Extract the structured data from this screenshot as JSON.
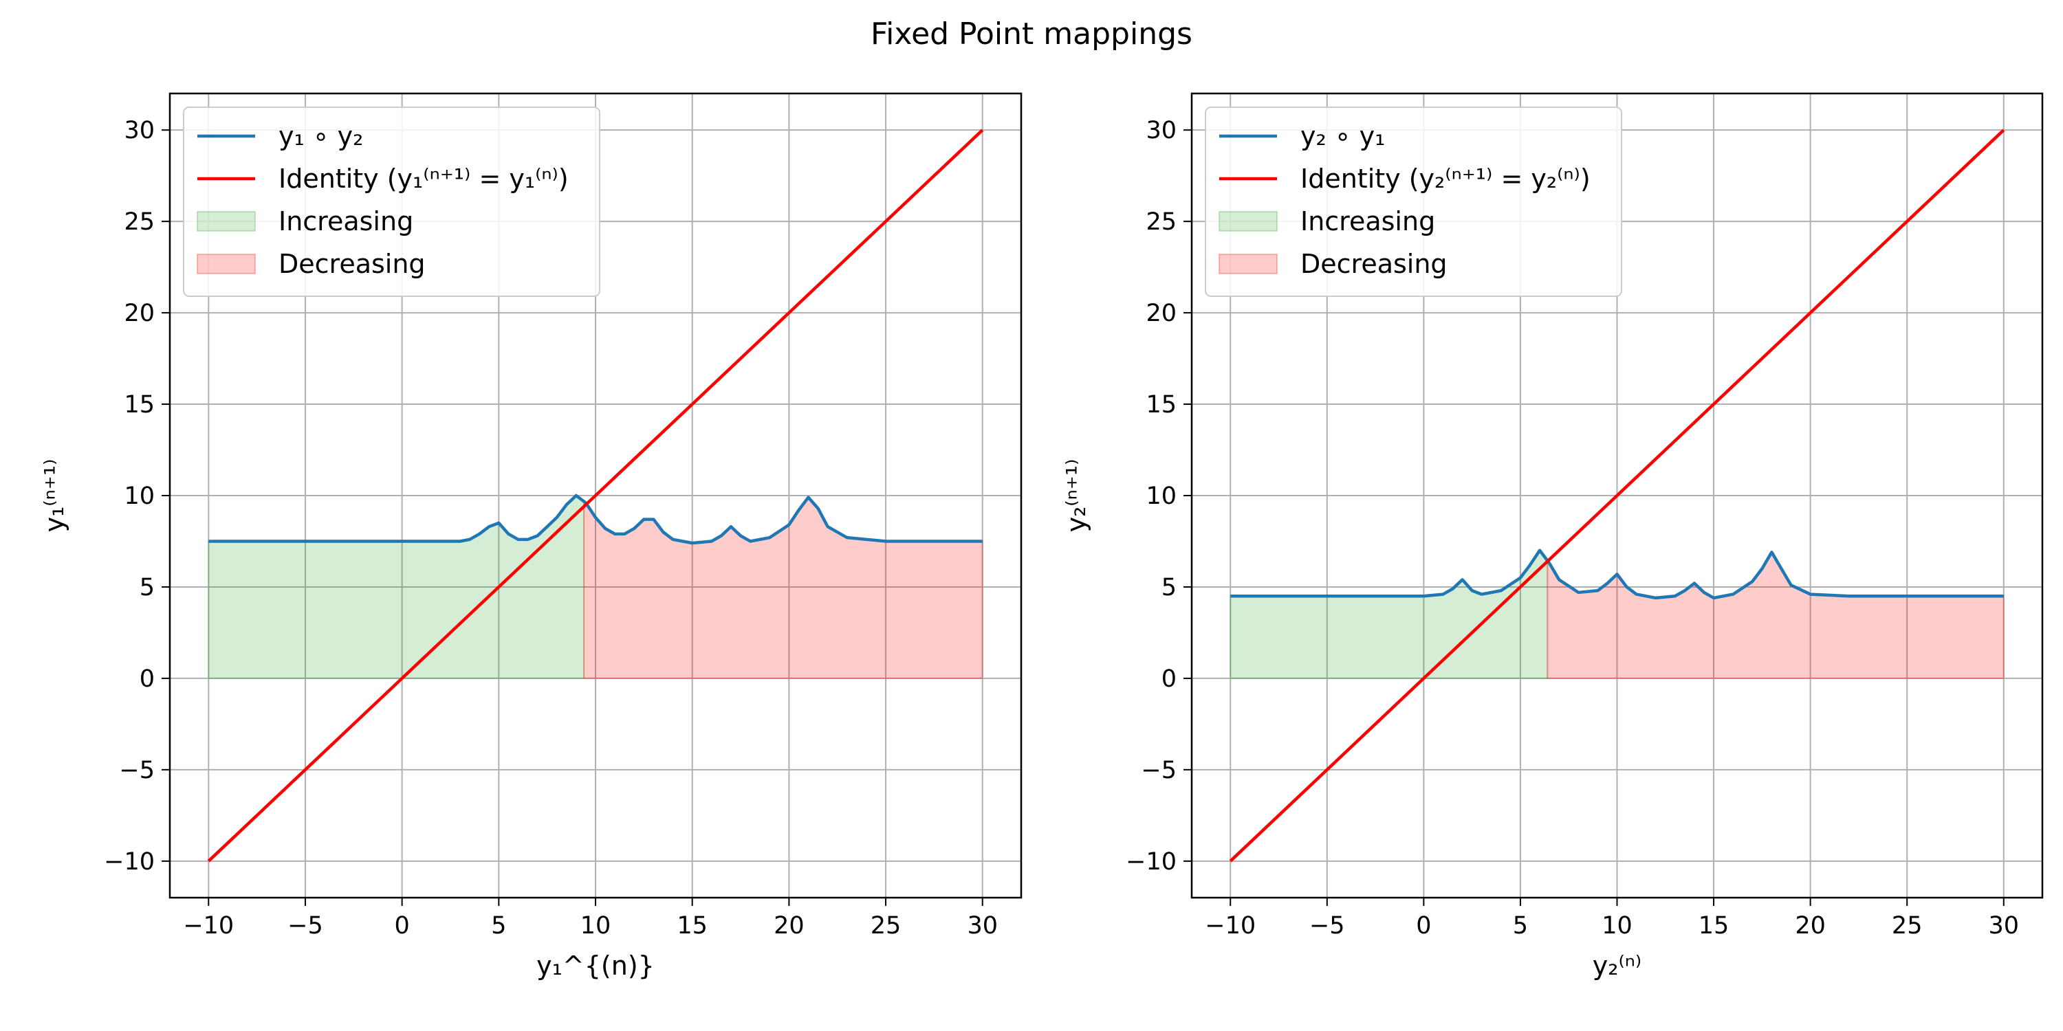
{
  "figure": {
    "title": "Fixed Point mappings"
  },
  "chart_data": [
    {
      "type": "line",
      "xlim": [
        -12,
        32
      ],
      "ylim": [
        -12,
        32
      ],
      "xticks": [
        -10,
        -5,
        0,
        5,
        10,
        15,
        20,
        25,
        30
      ],
      "yticks": [
        -10,
        -5,
        0,
        5,
        10,
        15,
        20,
        25,
        30
      ],
      "tick_labels": [
        "−10",
        "−5",
        "0",
        "5",
        "10",
        "15",
        "20",
        "25",
        "30"
      ],
      "xlabel": "y₁^{(n)}",
      "ylabel": "y₁⁽ⁿ⁺¹⁾",
      "grid": true,
      "legend_position": "upper-left",
      "series": [
        {
          "name": "y₁ ∘ y₂",
          "color": "#1f77b4",
          "x": [
            -10,
            -5,
            0,
            2,
            3,
            3.5,
            4,
            4.5,
            5,
            5.5,
            6,
            6.5,
            7,
            7.5,
            8,
            8.5,
            9,
            9.5,
            10,
            10.5,
            11,
            11.5,
            12,
            12.5,
            13,
            13.5,
            14,
            15,
            16,
            16.5,
            17,
            17.5,
            18,
            19,
            20,
            20.5,
            21,
            21.5,
            22,
            23,
            25,
            30
          ],
          "y": [
            7.5,
            7.5,
            7.5,
            7.5,
            7.5,
            7.6,
            7.9,
            8.3,
            8.5,
            7.9,
            7.6,
            7.6,
            7.8,
            8.3,
            8.8,
            9.5,
            10.0,
            9.6,
            8.8,
            8.2,
            7.9,
            7.9,
            8.2,
            8.7,
            8.7,
            8.0,
            7.6,
            7.4,
            7.5,
            7.8,
            8.3,
            7.8,
            7.5,
            7.7,
            8.4,
            9.2,
            9.9,
            9.3,
            8.3,
            7.7,
            7.5,
            7.5
          ]
        },
        {
          "name": "Identity (y₁⁽ⁿ⁺¹⁾ = y₁⁽ⁿ⁾)",
          "color": "#ff0000",
          "x": [
            -10,
            30
          ],
          "y": [
            -10,
            30
          ]
        }
      ],
      "regions": [
        {
          "name": "Increasing",
          "color": "#2ca02c",
          "x_from": -10,
          "x_to": 9.4
        },
        {
          "name": "Decreasing",
          "color": "#ff0000",
          "x_from": 9.4,
          "x_to": 30
        }
      ]
    },
    {
      "type": "line",
      "xlim": [
        -12,
        32
      ],
      "ylim": [
        -12,
        32
      ],
      "xticks": [
        -10,
        -5,
        0,
        5,
        10,
        15,
        20,
        25,
        30
      ],
      "yticks": [
        -10,
        -5,
        0,
        5,
        10,
        15,
        20,
        25,
        30
      ],
      "tick_labels": [
        "−10",
        "−5",
        "0",
        "5",
        "10",
        "15",
        "20",
        "25",
        "30"
      ],
      "xlabel": "y₂⁽ⁿ⁾",
      "ylabel": "y₂⁽ⁿ⁺¹⁾",
      "grid": true,
      "legend_position": "upper-left",
      "series": [
        {
          "name": "y₂ ∘ y₁",
          "color": "#1f77b4",
          "x": [
            -10,
            -5,
            0,
            1,
            1.5,
            2,
            2.5,
            3,
            4,
            5,
            5.5,
            6,
            6.5,
            7,
            8,
            9,
            9.5,
            10,
            10.5,
            11,
            12,
            13,
            13.5,
            14,
            14.5,
            15,
            16,
            17,
            17.5,
            18,
            18.5,
            19,
            20,
            22,
            30
          ],
          "y": [
            4.5,
            4.5,
            4.5,
            4.6,
            4.9,
            5.4,
            4.8,
            4.6,
            4.8,
            5.5,
            6.2,
            7.0,
            6.3,
            5.4,
            4.7,
            4.8,
            5.2,
            5.7,
            5.0,
            4.6,
            4.4,
            4.5,
            4.8,
            5.2,
            4.7,
            4.4,
            4.6,
            5.3,
            6.0,
            6.9,
            6.0,
            5.1,
            4.6,
            4.5,
            4.5
          ]
        },
        {
          "name": "Identity (y₂⁽ⁿ⁺¹⁾ = y₂⁽ⁿ⁾)",
          "color": "#ff0000",
          "x": [
            -10,
            30
          ],
          "y": [
            -10,
            30
          ]
        }
      ],
      "regions": [
        {
          "name": "Increasing",
          "color": "#2ca02c",
          "x_from": -10,
          "x_to": 6.4
        },
        {
          "name": "Decreasing",
          "color": "#ff0000",
          "x_from": 6.4,
          "x_to": 30
        }
      ]
    }
  ]
}
